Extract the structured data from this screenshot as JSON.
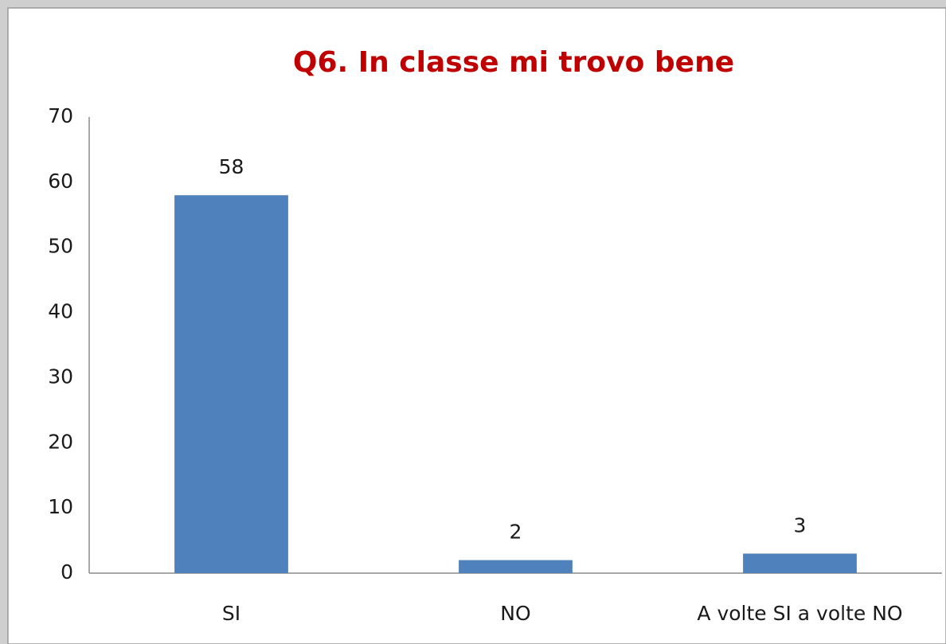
{
  "chart_data": {
    "type": "bar",
    "title": "Q6. In classe mi trovo bene",
    "categories": [
      "SI",
      "NO",
      "A volte SI a volte NO"
    ],
    "values": [
      58,
      2,
      3
    ],
    "color": "#4f81bd",
    "ylim": [
      0,
      70
    ],
    "yticks": [
      0,
      10,
      20,
      30,
      40,
      50,
      60,
      70
    ],
    "grid": false
  }
}
